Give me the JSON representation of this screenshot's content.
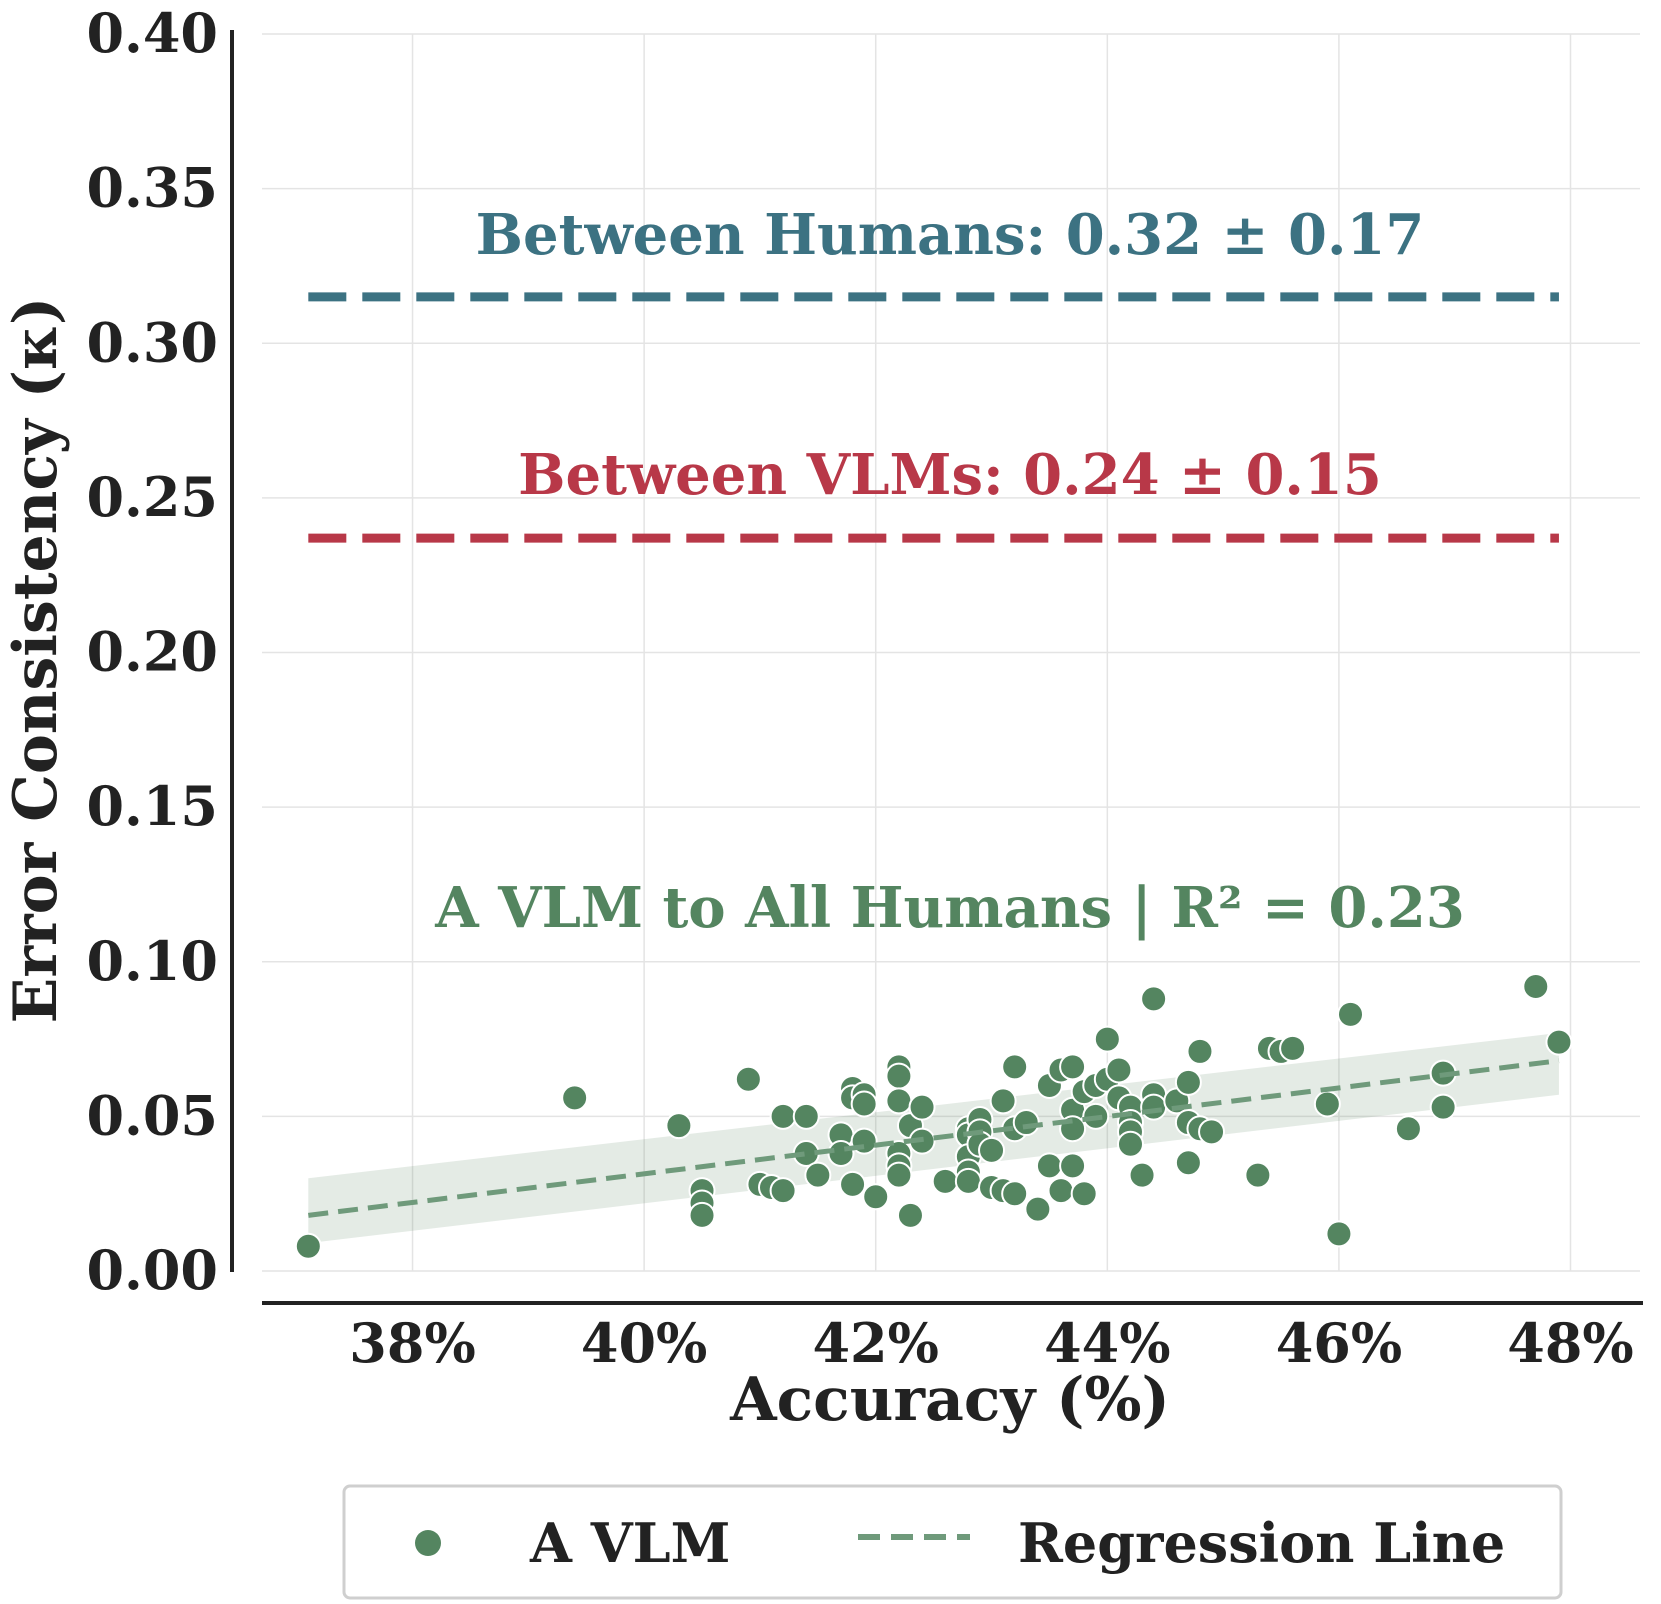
{
  "chart_data": {
    "type": "scatter",
    "xlabel": "Accuracy (%)",
    "ylabel": "Error Consistency (κ)",
    "xlim": [
      36.7,
      48.6
    ],
    "ylim": [
      0.0,
      0.4
    ],
    "x_ticks": [
      38,
      40,
      42,
      44,
      46,
      48
    ],
    "x_tick_labels": [
      "38%",
      "40%",
      "42%",
      "44%",
      "46%",
      "48%"
    ],
    "y_ticks": [
      0.0,
      0.05,
      0.1,
      0.15,
      0.2,
      0.25,
      0.3,
      0.35,
      0.4
    ],
    "y_tick_labels": [
      "0.00",
      "0.05",
      "0.10",
      "0.15",
      "0.20",
      "0.25",
      "0.30",
      "0.35",
      "0.40"
    ],
    "grid": true,
    "reference_lines": [
      {
        "name": "Between Humans",
        "label": "Between Humans: 0.32 ± 0.17",
        "y": 0.315,
        "x_range": [
          37.1,
          47.9
        ],
        "color": "#3c7282"
      },
      {
        "name": "Between VLMs",
        "label": "Between VLMs: 0.24 ± 0.15",
        "y": 0.237,
        "x_range": [
          37.1,
          47.9
        ],
        "color": "#b83848"
      }
    ],
    "scatter_annotation": "A VLM to All Humans | R² = 0.23",
    "scatter_color": "#548560",
    "regression": {
      "x0": 37.1,
      "y0": 0.018,
      "x1": 47.9,
      "y1": 0.068,
      "ci_start": [
        0.009,
        0.03
      ],
      "ci_end": [
        0.057,
        0.077
      ]
    },
    "points": [
      [
        37.1,
        0.008
      ],
      [
        39.4,
        0.056
      ],
      [
        40.3,
        0.047
      ],
      [
        40.5,
        0.026
      ],
      [
        40.5,
        0.022
      ],
      [
        40.5,
        0.018
      ],
      [
        40.9,
        0.062
      ],
      [
        41.0,
        0.028
      ],
      [
        41.1,
        0.027
      ],
      [
        41.2,
        0.026
      ],
      [
        41.2,
        0.05
      ],
      [
        41.4,
        0.05
      ],
      [
        41.4,
        0.038
      ],
      [
        41.5,
        0.031
      ],
      [
        41.7,
        0.044
      ],
      [
        41.7,
        0.038
      ],
      [
        41.8,
        0.059
      ],
      [
        41.8,
        0.056
      ],
      [
        41.8,
        0.028
      ],
      [
        41.9,
        0.057
      ],
      [
        41.9,
        0.054
      ],
      [
        41.9,
        0.042
      ],
      [
        42.0,
        0.024
      ],
      [
        42.2,
        0.066
      ],
      [
        42.2,
        0.063
      ],
      [
        42.2,
        0.055
      ],
      [
        42.2,
        0.038
      ],
      [
        42.2,
        0.034
      ],
      [
        42.2,
        0.031
      ],
      [
        42.3,
        0.047
      ],
      [
        42.3,
        0.018
      ],
      [
        42.4,
        0.053
      ],
      [
        42.4,
        0.042
      ],
      [
        42.6,
        0.029
      ],
      [
        42.8,
        0.046
      ],
      [
        42.8,
        0.044
      ],
      [
        42.8,
        0.037
      ],
      [
        42.8,
        0.032
      ],
      [
        42.8,
        0.029
      ],
      [
        42.9,
        0.049
      ],
      [
        42.9,
        0.045
      ],
      [
        42.9,
        0.041
      ],
      [
        43.0,
        0.039
      ],
      [
        43.0,
        0.027
      ],
      [
        43.1,
        0.055
      ],
      [
        43.1,
        0.026
      ],
      [
        43.2,
        0.066
      ],
      [
        43.2,
        0.046
      ],
      [
        43.2,
        0.025
      ],
      [
        43.3,
        0.048
      ],
      [
        43.4,
        0.02
      ],
      [
        43.5,
        0.06
      ],
      [
        43.5,
        0.034
      ],
      [
        43.6,
        0.065
      ],
      [
        43.6,
        0.026
      ],
      [
        43.7,
        0.066
      ],
      [
        43.7,
        0.052
      ],
      [
        43.7,
        0.046
      ],
      [
        43.7,
        0.034
      ],
      [
        43.8,
        0.058
      ],
      [
        43.8,
        0.025
      ],
      [
        43.9,
        0.06
      ],
      [
        43.9,
        0.05
      ],
      [
        44.0,
        0.075
      ],
      [
        44.0,
        0.062
      ],
      [
        44.1,
        0.065
      ],
      [
        44.1,
        0.056
      ],
      [
        44.2,
        0.053
      ],
      [
        44.2,
        0.048
      ],
      [
        44.2,
        0.045
      ],
      [
        44.2,
        0.041
      ],
      [
        44.3,
        0.031
      ],
      [
        44.4,
        0.088
      ],
      [
        44.4,
        0.057
      ],
      [
        44.4,
        0.053
      ],
      [
        44.6,
        0.055
      ],
      [
        44.7,
        0.061
      ],
      [
        44.7,
        0.048
      ],
      [
        44.7,
        0.035
      ],
      [
        44.8,
        0.071
      ],
      [
        44.8,
        0.046
      ],
      [
        44.9,
        0.045
      ],
      [
        45.3,
        0.031
      ],
      [
        45.4,
        0.072
      ],
      [
        45.5,
        0.071
      ],
      [
        45.6,
        0.072
      ],
      [
        45.9,
        0.054
      ],
      [
        46.0,
        0.012
      ],
      [
        46.1,
        0.083
      ],
      [
        46.6,
        0.046
      ],
      [
        46.9,
        0.064
      ],
      [
        46.9,
        0.053
      ],
      [
        47.7,
        0.092
      ],
      [
        47.9,
        0.074
      ]
    ],
    "legend": {
      "position": "bottom-center",
      "entries": [
        {
          "label": "A VLM",
          "marker": "circle"
        },
        {
          "label": "Regression Line",
          "marker": "dashed-line"
        }
      ]
    }
  }
}
